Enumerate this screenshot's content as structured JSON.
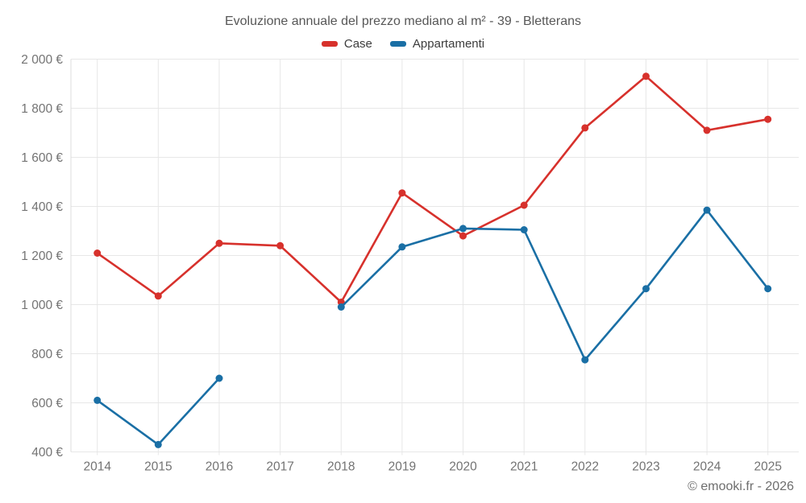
{
  "chart_data": {
    "type": "line",
    "title": "Evoluzione annuale del prezzo mediano al m² - 39 - Bletterans",
    "x": [
      2014,
      2015,
      2016,
      2017,
      2018,
      2019,
      2020,
      2021,
      2022,
      2023,
      2024,
      2025
    ],
    "series": [
      {
        "name": "Case",
        "color": "#d7312c",
        "values": [
          1210,
          1035,
          1250,
          1240,
          1010,
          1455,
          1280,
          1405,
          1720,
          1930,
          1710,
          1755
        ]
      },
      {
        "name": "Appartamenti",
        "color": "#1a6fa5",
        "values": [
          610,
          430,
          700,
          null,
          990,
          1235,
          1310,
          1305,
          775,
          1065,
          1385,
          1065
        ]
      }
    ],
    "xlabel": "",
    "ylabel": "",
    "ylim": [
      400,
      2000
    ],
    "yticks": [
      400,
      600,
      800,
      1000,
      1200,
      1400,
      1600,
      1800,
      2000
    ],
    "ytick_labels": [
      "400 €",
      "600 €",
      "800 €",
      "1 000 €",
      "1 200 €",
      "1 400 €",
      "1 600 €",
      "1 800 €",
      "2 000 €"
    ],
    "grid": true,
    "legend_position": "top",
    "note": "Appartamenti series has a gap (no marker, no line) at 2017"
  },
  "footer": {
    "attribution": "© emooki.fr - 2026"
  }
}
